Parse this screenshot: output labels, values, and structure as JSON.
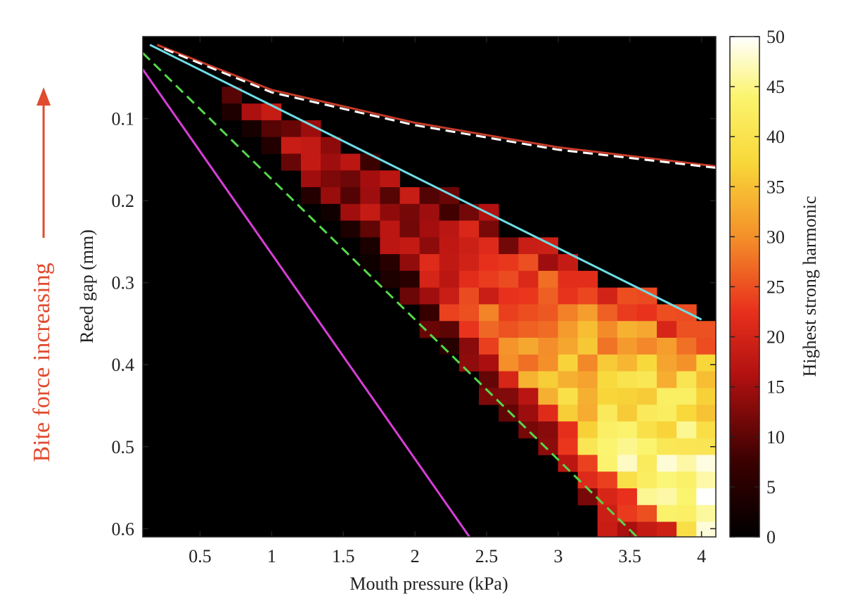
{
  "chart_data": {
    "type": "heatmap",
    "title": "",
    "xlabel": "Mouth pressure (kPa)",
    "ylabel": "Reed gap (mm)",
    "annotation": "Bite force increasing",
    "colorbar_label": "Highest strong harmonic",
    "xlim": [
      0.1,
      4.1
    ],
    "ylim": [
      0.0,
      0.61
    ],
    "y_inverted": true,
    "xticks": [
      0.5,
      1,
      1.5,
      2,
      2.5,
      3,
      3.5,
      4
    ],
    "xtick_labels": [
      "0.5",
      "1",
      "1.5",
      "2",
      "2.5",
      "3",
      "3.5",
      "4"
    ],
    "yticks": [
      0.1,
      0.2,
      0.3,
      0.4,
      0.5,
      0.6
    ],
    "ytick_labels": [
      "0.1",
      "0.2",
      "0.3",
      "0.4",
      "0.5",
      "0.6"
    ],
    "colorbar_range": [
      0,
      50
    ],
    "colorbar_ticks": [
      0,
      5,
      10,
      15,
      20,
      25,
      30,
      35,
      40,
      45,
      50
    ],
    "colorbar_tick_labels": [
      "0",
      "5",
      "10",
      "15",
      "20",
      "25",
      "30",
      "35",
      "40",
      "45",
      "50"
    ],
    "grid": {
      "cell_width_kpa": 0.138,
      "cell_height_mm": 0.0204,
      "origin_x_kpa": 0.1,
      "origin_y_mm": 0.0,
      "region": {
        "upper_boundary": {
          "x": [
            0.6,
            4.1
          ],
          "y": [
            0.05,
            0.35
          ]
        },
        "lower_boundary": {
          "x": [
            0.6,
            4.1
          ],
          "y": [
            0.07,
            0.75
          ]
        }
      },
      "value_model": {
        "peak_at": {
          "x": 3.95,
          "y": 0.55
        },
        "peak_value": 48,
        "edge_value": 14
      }
    },
    "lines": [
      {
        "name": "red-solid",
        "style": "solid",
        "color": "#c43a28",
        "x": [
          0.2,
          1.0,
          2.0,
          3.0,
          4.1
        ],
        "y": [
          0.01,
          0.065,
          0.105,
          0.135,
          0.158
        ]
      },
      {
        "name": "white-dashed",
        "style": "dashed",
        "color": "#ffffff",
        "x": [
          0.25,
          1.0,
          2.0,
          3.0,
          4.1
        ],
        "y": [
          0.015,
          0.068,
          0.108,
          0.138,
          0.16
        ]
      },
      {
        "name": "cyan-solid",
        "style": "solid",
        "color": "#6fdde4",
        "x": [
          0.15,
          4.0
        ],
        "y": [
          0.01,
          0.345
        ]
      },
      {
        "name": "green-dashed",
        "style": "dashed",
        "color": "#55d84a",
        "x": [
          0.1,
          3.55
        ],
        "y": [
          0.02,
          0.61
        ]
      },
      {
        "name": "magenta-solid",
        "style": "solid",
        "color": "#d63fd6",
        "x": [
          0.1,
          2.38
        ],
        "y": [
          0.04,
          0.61
        ]
      }
    ],
    "colors": {
      "axis": "#222222",
      "annotation": "#e04a2e",
      "background": "#000000"
    }
  }
}
